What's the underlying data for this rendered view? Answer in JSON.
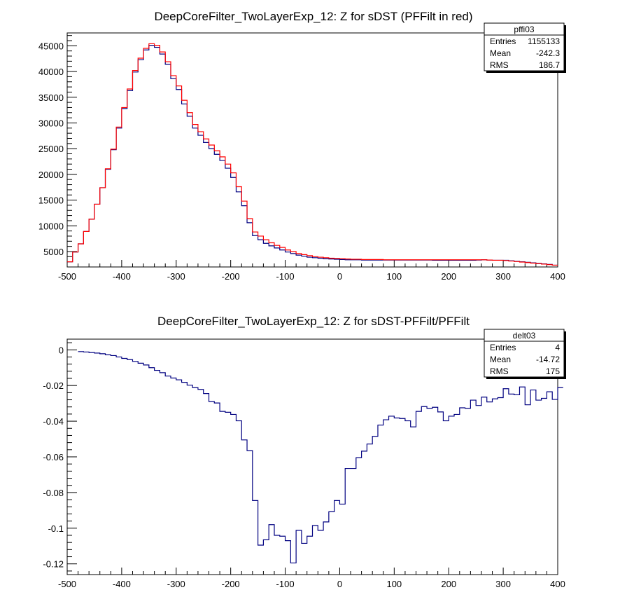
{
  "chart_data": [
    {
      "type": "histogram",
      "title": "DeepCoreFilter_TwoLayerExp_12: Z for sDST (PFFilt in red)",
      "xlim": [
        -500,
        400
      ],
      "ylim": [
        2000,
        47500
      ],
      "x_ticks": [
        -500,
        -400,
        -300,
        -200,
        -100,
        0,
        100,
        200,
        300,
        400
      ],
      "y_ticks": [
        5000,
        10000,
        15000,
        20000,
        25000,
        30000,
        35000,
        40000,
        45000
      ],
      "y_tick_labels": [
        "5000",
        "10000",
        "15000",
        "20000",
        "25000",
        "30000",
        "35000",
        "40000",
        "45000"
      ],
      "bin_edges_start": -500,
      "bin_width": 10,
      "stats_box": {
        "name": "pffi03",
        "rows": [
          {
            "label": "Entries",
            "value": "1155133"
          },
          {
            "label": "Mean",
            "value": "-242.3"
          },
          {
            "label": "RMS",
            "value": "186.7"
          }
        ]
      },
      "series": [
        {
          "color": "#000080",
          "values": [
            3000,
            4900,
            6500,
            8900,
            11300,
            14200,
            17400,
            21000,
            24800,
            29000,
            32800,
            36300,
            39900,
            42300,
            44200,
            45100,
            44700,
            43400,
            41400,
            38600,
            36500,
            33700,
            31300,
            29000,
            27600,
            26200,
            25000,
            23900,
            22700,
            21200,
            19400,
            16600,
            13900,
            10600,
            8100,
            7300,
            6600,
            6100,
            5700,
            5300,
            4900,
            4600,
            4300,
            4100,
            3900,
            3800,
            3700,
            3600,
            3550,
            3500,
            3450,
            3400,
            3400,
            3400,
            3350,
            3350,
            3350,
            3350,
            3350,
            3350,
            3350,
            3350,
            3350,
            3350,
            3350,
            3350,
            3350,
            3300,
            3300,
            3300,
            3300,
            3300,
            3300,
            3300,
            3300,
            3350,
            3400,
            3350,
            3300,
            3300,
            3300,
            3200,
            3100,
            3000,
            2900,
            2800,
            2700,
            2600,
            2500,
            2350
          ]
        },
        {
          "color": "#ff0000",
          "values": [
            3000,
            4900,
            6500,
            8900,
            11300,
            14200,
            17400,
            21100,
            24900,
            29200,
            33000,
            36600,
            40200,
            42600,
            44500,
            45400,
            45100,
            43800,
            41900,
            39200,
            37200,
            34400,
            32000,
            29700,
            28300,
            26900,
            25700,
            24600,
            23400,
            22000,
            20300,
            17600,
            14800,
            11400,
            8800,
            8000,
            7300,
            6700,
            6200,
            5800,
            5300,
            5000,
            4600,
            4400,
            4200,
            4000,
            3900,
            3800,
            3700,
            3650,
            3600,
            3550,
            3500,
            3500,
            3450,
            3450,
            3450,
            3450,
            3400,
            3400,
            3400,
            3400,
            3400,
            3400,
            3400,
            3400,
            3400,
            3400,
            3400,
            3400,
            3400,
            3400,
            3400,
            3400,
            3400,
            3400,
            3400,
            3350,
            3300,
            3300,
            3250,
            3150,
            3050,
            2950,
            2850,
            2750,
            2650,
            2550,
            2450,
            2350
          ]
        }
      ]
    },
    {
      "type": "histogram",
      "title": "DeepCoreFilter_TwoLayerExp_12: Z for sDST-PFFilt/PFFilt",
      "xlim": [
        -500,
        400
      ],
      "ylim": [
        -0.126,
        0.006
      ],
      "x_ticks": [
        -500,
        -400,
        -300,
        -200,
        -100,
        0,
        100,
        200,
        300,
        400
      ],
      "y_ticks": [
        0,
        -0.02,
        -0.04,
        -0.06,
        -0.08,
        -0.1,
        -0.12
      ],
      "y_tick_labels": [
        "0",
        "-0.02",
        "-0.04",
        "-0.06",
        "-0.08",
        "-0.1",
        "-0.12"
      ],
      "bin_edges_start": -480,
      "bin_width": 10,
      "stats_box": {
        "name": "delt03",
        "rows": [
          {
            "label": "Entries",
            "value": "4"
          },
          {
            "label": "Mean",
            "value": "-14.72"
          },
          {
            "label": "RMS",
            "value": "175"
          }
        ]
      },
      "series": [
        {
          "color": "#000080",
          "values": [
            -0.001,
            -0.0012,
            -0.0015,
            -0.0018,
            -0.0022,
            -0.0028,
            -0.0032,
            -0.004,
            -0.0048,
            -0.0055,
            -0.0065,
            -0.0075,
            -0.0085,
            -0.01,
            -0.0115,
            -0.0128,
            -0.0147,
            -0.0158,
            -0.0168,
            -0.0182,
            -0.0198,
            -0.0212,
            -0.0222,
            -0.0245,
            -0.029,
            -0.0298,
            -0.0345,
            -0.035,
            -0.0362,
            -0.0398,
            -0.0505,
            -0.0565,
            -0.0845,
            -0.1095,
            -0.1065,
            -0.098,
            -0.104,
            -0.1045,
            -0.107,
            -0.1195,
            -0.1012,
            -0.1085,
            -0.1045,
            -0.0985,
            -0.1012,
            -0.0965,
            -0.0908,
            -0.0845,
            -0.0865,
            -0.0665,
            -0.0665,
            -0.0605,
            -0.0568,
            -0.0528,
            -0.0485,
            -0.0422,
            -0.0392,
            -0.0372,
            -0.0382,
            -0.0385,
            -0.0398,
            -0.0432,
            -0.0345,
            -0.0318,
            -0.0328,
            -0.0322,
            -0.0348,
            -0.0398,
            -0.0372,
            -0.0362,
            -0.0325,
            -0.0328,
            -0.0282,
            -0.0312,
            -0.0265,
            -0.0292,
            -0.0275,
            -0.0268,
            -0.0218,
            -0.0248,
            -0.0252,
            -0.0208,
            -0.0308,
            -0.0225,
            -0.0282,
            -0.0272,
            -0.0235,
            -0.0278,
            -0.0212
          ]
        }
      ]
    }
  ]
}
